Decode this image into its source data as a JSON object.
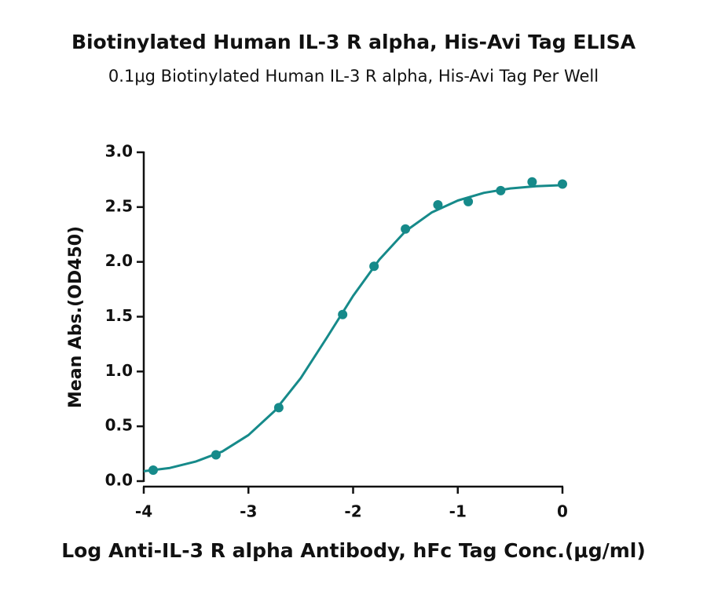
{
  "chart_data": {
    "type": "scatter",
    "title": "Biotinylated Human IL-3 R alpha, His-Avi Tag ELISA",
    "subtitle": "0.1μg Biotinylated Human IL-3 R alpha, His-Avi Tag Per Well",
    "x_label": "Log Anti-IL-3 R alpha Antibody, hFc Tag Conc.(μg/ml)",
    "y_label": "Mean Abs.(OD450)",
    "color": "#168a8a",
    "x": [
      -3.91,
      -3.31,
      -2.71,
      -2.1,
      -1.8,
      -1.5,
      -1.19,
      -0.9,
      -0.59,
      -0.29,
      0
    ],
    "values": [
      0.1,
      0.24,
      0.67,
      1.52,
      1.96,
      2.3,
      2.52,
      2.55,
      2.65,
      2.73,
      2.71
    ],
    "fit": {
      "x": [
        -4,
        -3.75,
        -3.5,
        -3.25,
        -3,
        -2.75,
        -2.5,
        -2.25,
        -2,
        -1.75,
        -1.5,
        -1.25,
        -1,
        -0.75,
        -0.5,
        -0.25,
        0
      ],
      "values": [
        0.09,
        0.12,
        0.18,
        0.27,
        0.42,
        0.64,
        0.94,
        1.31,
        1.69,
        2.02,
        2.28,
        2.45,
        2.56,
        2.63,
        2.67,
        2.69,
        2.7
      ]
    },
    "xlim": [
      -4,
      0
    ],
    "xticks": [
      -4,
      -3,
      -2,
      -1,
      0
    ],
    "ylim": [
      0,
      3
    ],
    "yticks": [
      {
        "value": 0,
        "label": "0.0"
      },
      {
        "value": 0.5,
        "label": "0.5"
      },
      {
        "value": 1,
        "label": "1.0"
      },
      {
        "value": 1.5,
        "label": "1.5"
      },
      {
        "value": 2,
        "label": "2.0"
      },
      {
        "value": 2.5,
        "label": "2.5"
      },
      {
        "value": 3,
        "label": "3.0"
      }
    ]
  }
}
